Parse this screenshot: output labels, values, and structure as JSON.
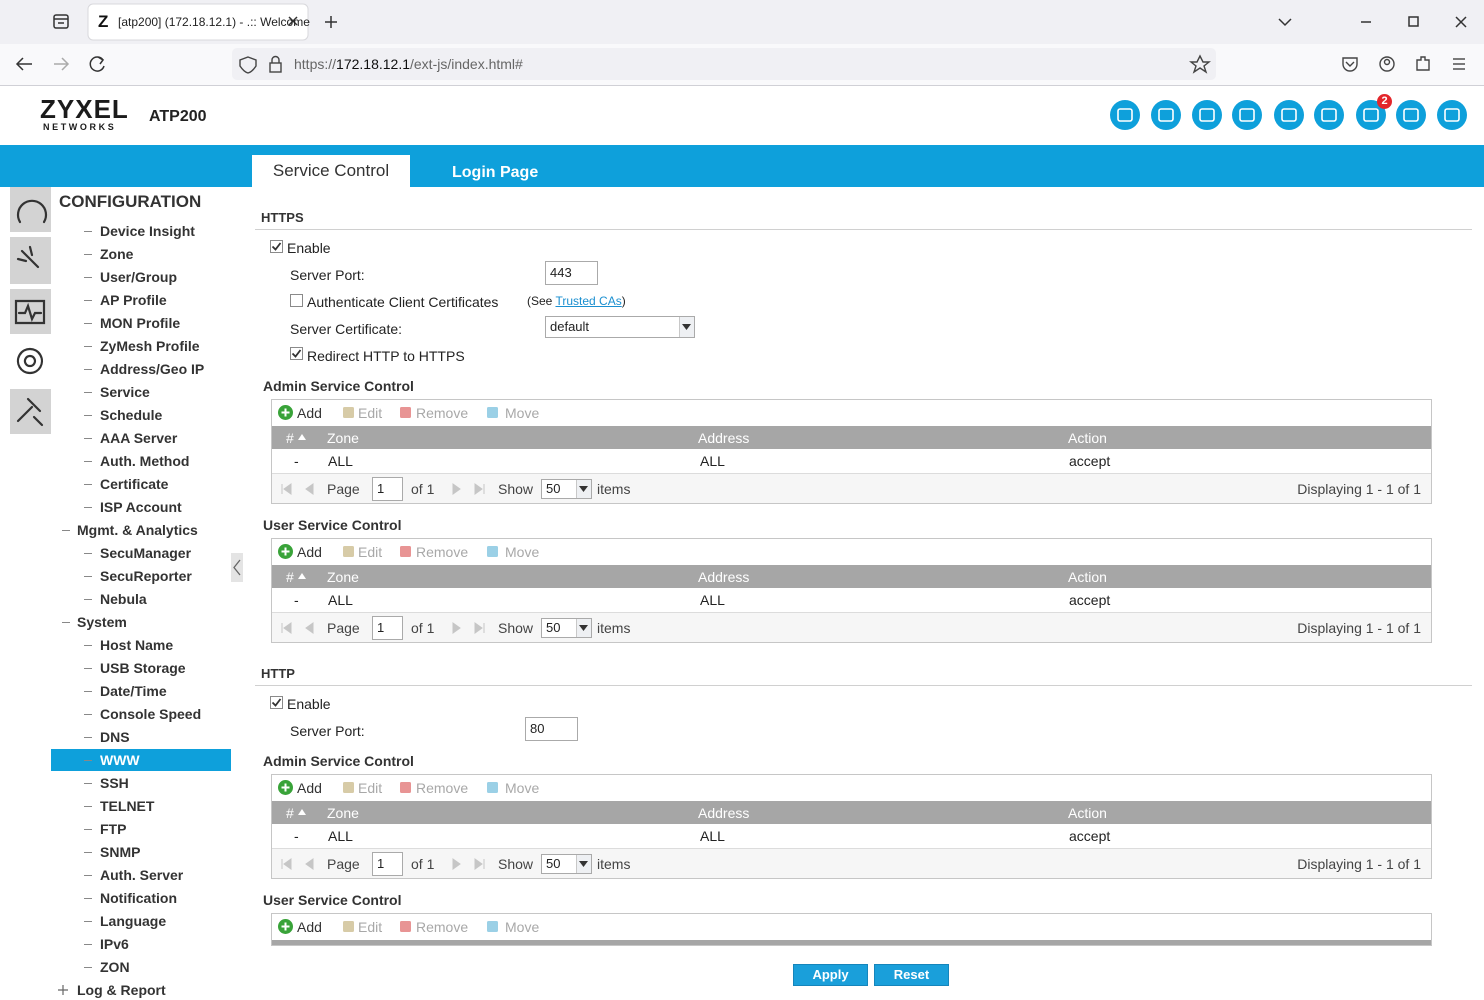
{
  "browser": {
    "tab_icon": "Z",
    "tab_title": "[atp200] (172.18.12.1) - .:: Welcome",
    "url_scheme": "https://",
    "url_host": "172.18.12.1",
    "url_path": "/ext-js/index.html#"
  },
  "header": {
    "brand": "ZYXEL",
    "brand_sub": "NETWORKS",
    "model": "ATP200",
    "notification_count": "2"
  },
  "tabs": [
    {
      "label": "Service Control",
      "active": true
    },
    {
      "label": "Login Page",
      "active": false
    }
  ],
  "sidebar": {
    "title": "CONFIGURATION",
    "items": [
      {
        "label": "Device Insight",
        "depth": 2
      },
      {
        "label": "Zone",
        "depth": 2
      },
      {
        "label": "User/Group",
        "depth": 2
      },
      {
        "label": "AP Profile",
        "depth": 2
      },
      {
        "label": "MON Profile",
        "depth": 2
      },
      {
        "label": "ZyMesh Profile",
        "depth": 2
      },
      {
        "label": "Address/Geo IP",
        "depth": 2
      },
      {
        "label": "Service",
        "depth": 2
      },
      {
        "label": "Schedule",
        "depth": 2
      },
      {
        "label": "AAA Server",
        "depth": 2
      },
      {
        "label": "Auth. Method",
        "depth": 2
      },
      {
        "label": "Certificate",
        "depth": 2
      },
      {
        "label": "ISP Account",
        "depth": 2
      },
      {
        "label": "Mgmt. & Analytics",
        "depth": 1,
        "expanded": true
      },
      {
        "label": "SecuManager",
        "depth": 2
      },
      {
        "label": "SecuReporter",
        "depth": 2
      },
      {
        "label": "Nebula",
        "depth": 2
      },
      {
        "label": "System",
        "depth": 1,
        "expanded": true
      },
      {
        "label": "Host Name",
        "depth": 2
      },
      {
        "label": "USB Storage",
        "depth": 2
      },
      {
        "label": "Date/Time",
        "depth": 2
      },
      {
        "label": "Console Speed",
        "depth": 2
      },
      {
        "label": "DNS",
        "depth": 2
      },
      {
        "label": "WWW",
        "depth": 2,
        "selected": true
      },
      {
        "label": "SSH",
        "depth": 2
      },
      {
        "label": "TELNET",
        "depth": 2
      },
      {
        "label": "FTP",
        "depth": 2
      },
      {
        "label": "SNMP",
        "depth": 2
      },
      {
        "label": "Auth. Server",
        "depth": 2
      },
      {
        "label": "Notification",
        "depth": 2
      },
      {
        "label": "Language",
        "depth": 2
      },
      {
        "label": "IPv6",
        "depth": 2
      },
      {
        "label": "ZON",
        "depth": 2
      },
      {
        "label": "Log & Report",
        "depth": 1,
        "expanded": false
      }
    ]
  },
  "grid": {
    "toolbar": [
      "Add",
      "Edit",
      "Remove",
      "Move"
    ],
    "columns": [
      "#",
      "Zone",
      "Address",
      "Action"
    ],
    "page_label": "Page",
    "show_label": "Show",
    "items_label": "items"
  },
  "https": {
    "title": "HTTPS",
    "enable": {
      "label": "Enable",
      "checked": true
    },
    "server_port": {
      "label": "Server Port:",
      "value": "443"
    },
    "auth_client_cert": {
      "label": "Authenticate Client Certificates",
      "checked": false,
      "note_prefix": "(See",
      "link": "Trusted CAs",
      "note_suffix": ")"
    },
    "server_certificate": {
      "label": "Server Certificate:",
      "value": "default"
    },
    "redirect": {
      "label": "Redirect HTTP to HTTPS",
      "checked": true
    },
    "admin_table": {
      "title": "Admin Service Control",
      "rows": [
        [
          "-",
          "ALL",
          "ALL",
          "accept"
        ]
      ],
      "pager": {
        "page": "1",
        "of": "of 1",
        "per_page": "50",
        "display": "Displaying 1 - 1 of 1"
      }
    },
    "user_table": {
      "title": "User Service Control",
      "rows": [
        [
          "-",
          "ALL",
          "ALL",
          "accept"
        ]
      ],
      "pager": {
        "page": "1",
        "of": "of 1",
        "per_page": "50",
        "display": "Displaying 1 - 1 of 1"
      }
    }
  },
  "http": {
    "title": "HTTP",
    "enable": {
      "label": "Enable",
      "checked": true
    },
    "server_port": {
      "label": "Server Port:",
      "value": "80"
    },
    "admin_table": {
      "title": "Admin Service Control",
      "rows": [
        [
          "-",
          "ALL",
          "ALL",
          "accept"
        ]
      ],
      "pager": {
        "page": "1",
        "of": "of 1",
        "per_page": "50",
        "display": "Displaying 1 - 1 of 1"
      }
    },
    "user_table": {
      "title": "User Service Control"
    }
  },
  "buttons": [
    "Apply",
    "Reset"
  ]
}
